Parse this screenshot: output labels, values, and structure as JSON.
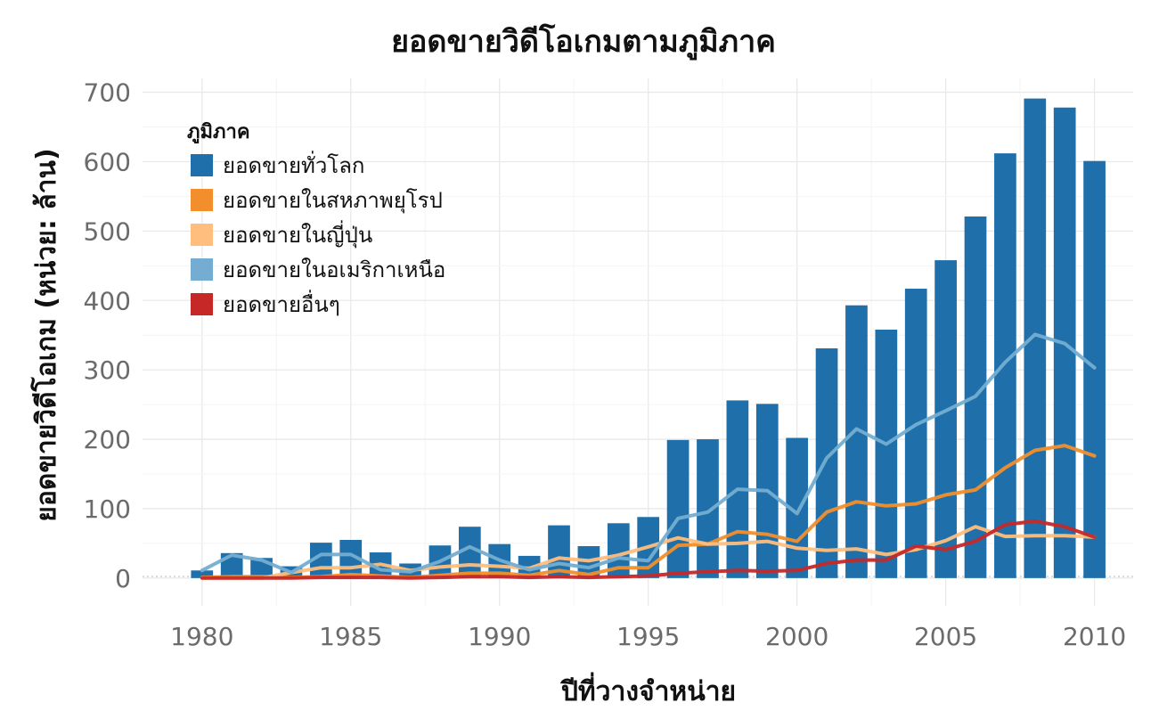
{
  "chart_data": {
    "type": "bar",
    "title": "ยอดขายวิดีโอเกมตามภูมิภาค",
    "xlabel": "ปีที่วางจำหน่าย",
    "ylabel": "ยอดขายวิดีโอเกม (หน่วย: ล้าน)",
    "xlim": [
      1978,
      2011.3
    ],
    "ylim": [
      -40,
      720
    ],
    "x_ticks": [
      "1980",
      "1985",
      "1990",
      "1995",
      "2000",
      "2005",
      "2010"
    ],
    "y_ticks": [
      "0",
      "100",
      "200",
      "300",
      "400",
      "500",
      "600",
      "700"
    ],
    "grid": true,
    "legend": {
      "title": "ภูมิภาค",
      "position": "top-left",
      "entries": [
        "ยอดขายทั่วโลก",
        "ยอดขายในสหภาพยุโรป",
        "ยอดขายในญี่ปุ่น",
        "ยอดขายในอเมริกาเหนือ",
        "ยอดขายอื่นๆ"
      ]
    },
    "x": [
      1980,
      1981,
      1982,
      1983,
      1984,
      1985,
      1986,
      1987,
      1988,
      1989,
      1990,
      1991,
      1992,
      1993,
      1994,
      1995,
      1996,
      1997,
      1998,
      1999,
      2000,
      2001,
      2002,
      2003,
      2004,
      2005,
      2006,
      2007,
      2008,
      2009,
      2010
    ],
    "series": [
      {
        "name": "ยอดขายทั่วโลก",
        "kind": "bar",
        "color": "#1f6fab",
        "values": [
          11,
          36,
          29,
          17,
          51,
          55,
          37,
          21,
          47,
          74,
          49,
          32,
          76,
          46,
          79,
          88,
          199,
          200,
          256,
          251,
          202,
          331,
          393,
          358,
          417,
          458,
          521,
          612,
          691,
          678,
          601
        ]
      },
      {
        "name": "ยอดขายในสหภาพยุโรป",
        "kind": "line",
        "color": "#f28e2b",
        "values": [
          1,
          2,
          2,
          1,
          2,
          5,
          3,
          1,
          4,
          7,
          7,
          4,
          11,
          5,
          15,
          15,
          47,
          49,
          67,
          63,
          53,
          95,
          110,
          104,
          107,
          120,
          127,
          159,
          184,
          191,
          176
        ]
      },
      {
        "name": "ยอดขายในญี่ปุ่น",
        "kind": "line",
        "color": "#ffbe7d",
        "values": [
          0,
          0,
          0,
          8,
          15,
          15,
          20,
          11,
          16,
          19,
          17,
          14,
          29,
          25,
          33,
          45,
          58,
          49,
          50,
          53,
          43,
          40,
          42,
          34,
          41,
          54,
          74,
          60,
          61,
          61,
          59
        ]
      },
      {
        "name": "ยอดขายในอเมริกาเหนือ",
        "kind": "line",
        "color": "#74add1",
        "values": [
          11,
          33,
          26,
          8,
          34,
          34,
          12,
          9,
          24,
          45,
          26,
          12,
          21,
          15,
          29,
          25,
          86,
          95,
          128,
          126,
          93,
          173,
          215,
          193,
          221,
          241,
          262,
          311,
          351,
          338,
          303
        ]
      },
      {
        "name": "ยอดขายอื่นๆ",
        "kind": "line",
        "color": "#c62828",
        "values": [
          0,
          0,
          0,
          0,
          1,
          1,
          1,
          0,
          1,
          2,
          2,
          1,
          2,
          1,
          2,
          3,
          7,
          9,
          11,
          10,
          11,
          21,
          26,
          26,
          46,
          41,
          53,
          77,
          82,
          74,
          59
        ]
      }
    ]
  }
}
